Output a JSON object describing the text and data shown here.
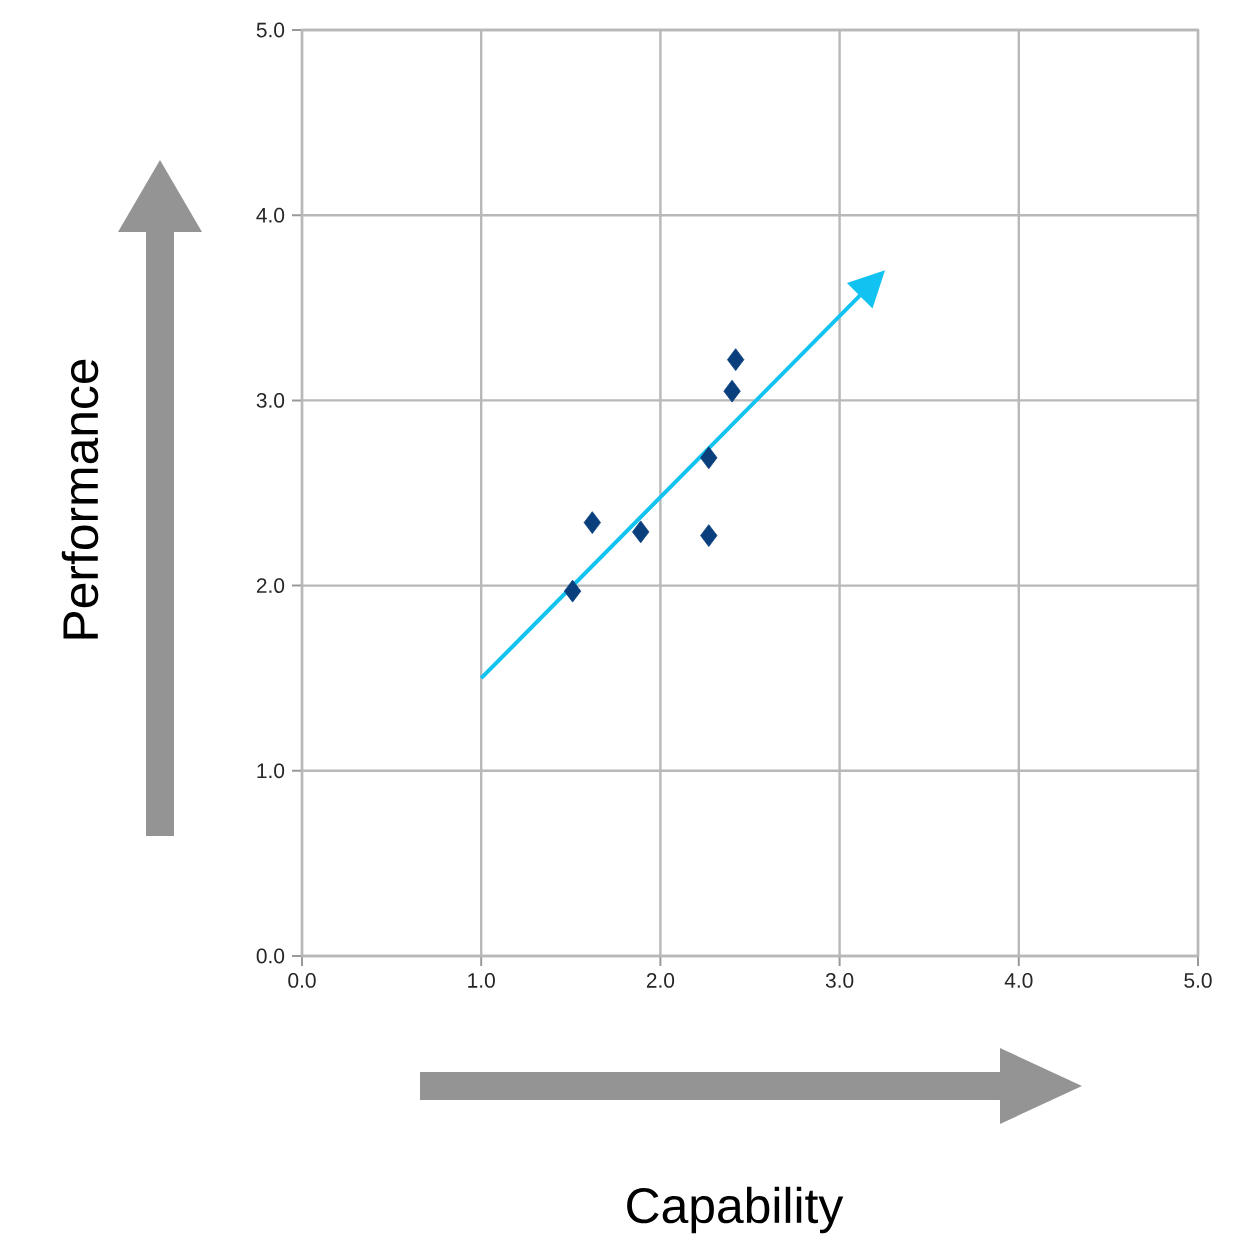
{
  "chart_data": {
    "type": "scatter",
    "xlabel": "Capability",
    "ylabel": "Performance",
    "xlim": [
      0,
      5
    ],
    "ylim": [
      0,
      5
    ],
    "xticks": [
      {
        "value": 0,
        "label": "0.0"
      },
      {
        "value": 1,
        "label": "1.0"
      },
      {
        "value": 2,
        "label": "2.0"
      },
      {
        "value": 3,
        "label": "3.0"
      },
      {
        "value": 4,
        "label": "4.0"
      },
      {
        "value": 5,
        "label": "5.0"
      }
    ],
    "yticks": [
      {
        "value": 0,
        "label": "0.0"
      },
      {
        "value": 1,
        "label": "1.0"
      },
      {
        "value": 2,
        "label": "2.0"
      },
      {
        "value": 3,
        "label": "3.0"
      },
      {
        "value": 4,
        "label": "4.0"
      },
      {
        "value": 5,
        "label": "5.0"
      }
    ],
    "grid": true,
    "marker": "diamond",
    "series": [
      {
        "color": "#0a3f7e",
        "x": [
          1.51,
          1.62,
          1.89,
          2.27,
          2.27,
          2.4,
          2.42
        ],
        "values": [
          1.97,
          2.34,
          2.29,
          2.27,
          2.69,
          3.05,
          3.22
        ]
      },
      {
        "type": "line",
        "color": "#12c3f2",
        "marker": "none",
        "x": [
          1.0,
          3.23
        ],
        "values": [
          1.5,
          3.68
        ]
      }
    ]
  }
}
